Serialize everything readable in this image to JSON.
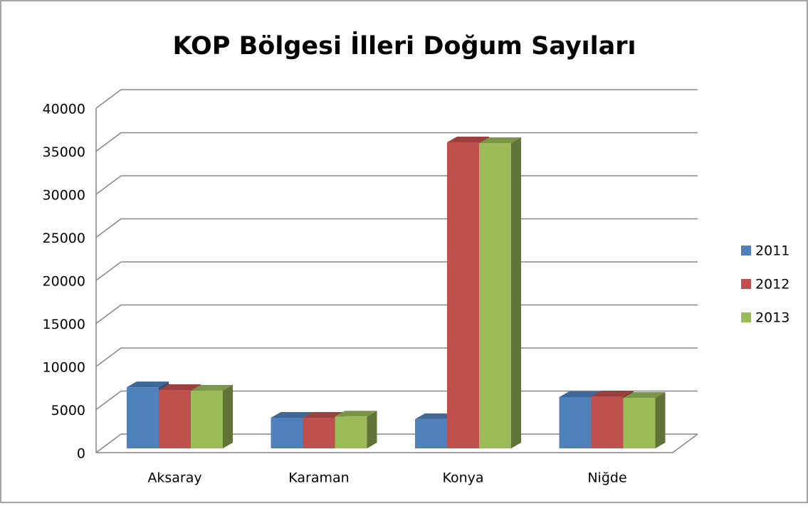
{
  "chart_data": {
    "type": "bar3d",
    "title": "KOP Bölgesi İlleri Doğum Sayıları",
    "categories": [
      "Aksaray",
      "Karaman",
      "Konya",
      "Niğde"
    ],
    "series": [
      {
        "name": "2011",
        "color": "#4f81bd",
        "values": [
          7100,
          3550,
          3400,
          5950
        ]
      },
      {
        "name": "2012",
        "color": "#c0504d",
        "values": [
          6780,
          3550,
          35540,
          6030
        ]
      },
      {
        "name": "2013",
        "color": "#9bbb59",
        "values": [
          6700,
          3700,
          35450,
          5870
        ]
      }
    ],
    "ylim": [
      0,
      40000
    ],
    "yticks": [
      0,
      5000,
      10000,
      15000,
      20000,
      25000,
      30000,
      35000,
      40000
    ],
    "grid": true,
    "legend": "right"
  }
}
